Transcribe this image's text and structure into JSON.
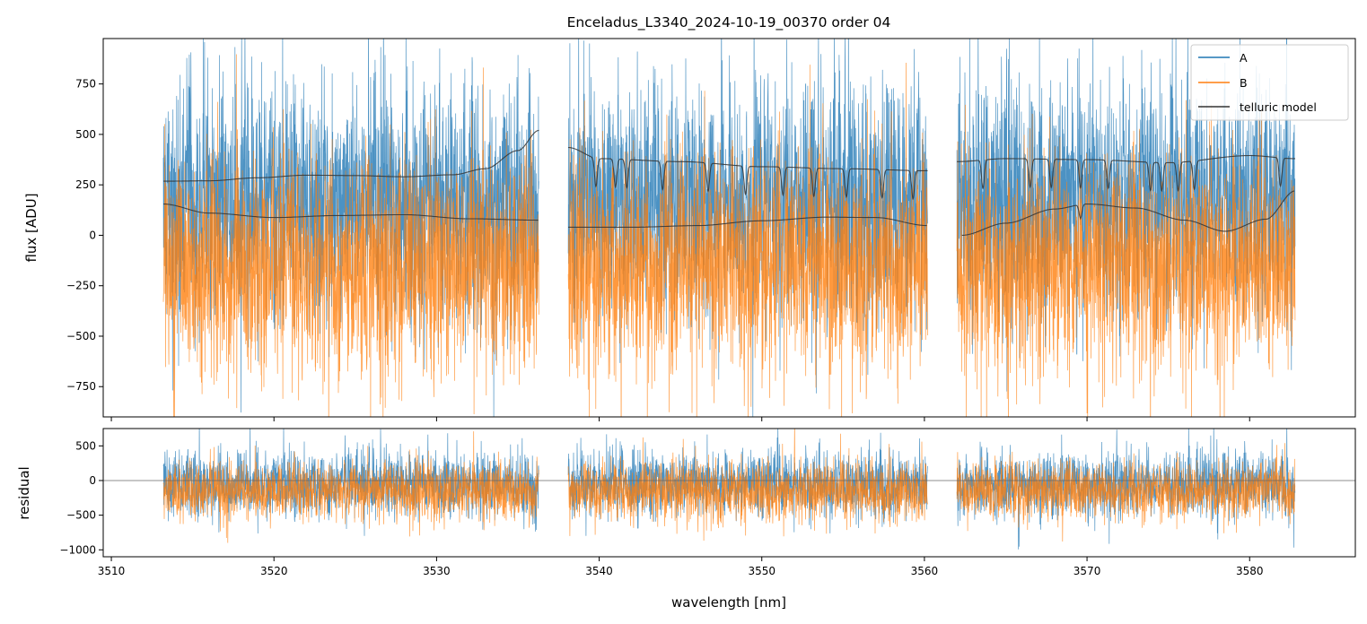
{
  "chart_data": {
    "type": "line",
    "title": "Enceladus_L3340_2024-10-19_00370  order 04",
    "xlabel": "wavelength [nm]",
    "xlim": [
      3509.5,
      3586.5
    ],
    "xticks": [
      3510,
      3520,
      3530,
      3540,
      3550,
      3560,
      3570,
      3580
    ],
    "panels": [
      {
        "id": "main",
        "ylabel": "flux [ADU]",
        "ylim": [
          -900,
          975
        ],
        "yticks": [
          -750,
          -500,
          -250,
          0,
          250,
          500,
          750
        ],
        "ytick_labels": [
          "−750",
          "−500",
          "−250",
          "0",
          "250",
          "500",
          "750"
        ],
        "series": [
          {
            "name": "A",
            "color": "#1f77b4",
            "linewidth": 1,
            "style": "noisy spectrum",
            "mean_level": 180,
            "noise_std": 280
          },
          {
            "name": "B",
            "color": "#ff7f0e",
            "linewidth": 1,
            "style": "noisy spectrum",
            "mean_level": -150,
            "noise_std": 260
          },
          {
            "name": "telluric model",
            "color": "#333333",
            "linewidth": 1,
            "segments_upper": [
              {
                "x": [
                  3513.2,
                  3516,
                  3519,
                  3522,
                  3525,
                  3528,
                  3531,
                  3533,
                  3535,
                  3536.3
                ],
                "y": [
                  268,
                  270,
                  285,
                  298,
                  296,
                  290,
                  300,
                  330,
                  420,
                  520
                ]
              },
              {
                "x": [
                  3538.1,
                  3540,
                  3545,
                  3550,
                  3555,
                  3560.2
                ],
                "y": [
                  435,
                  380,
                  365,
                  340,
                  330,
                  320
                ]
              },
              {
                "x": [
                  3562.0,
                  3565,
                  3570,
                  3575,
                  3580,
                  3582.8
                ],
                "y": [
                  365,
                  380,
                  375,
                  360,
                  395,
                  380
                ]
              }
            ],
            "segments_lower": [
              {
                "x": [
                  3513.2,
                  3516,
                  3520,
                  3524,
                  3528,
                  3532,
                  3536.3
                ],
                "y": [
                  155,
                  110,
                  88,
                  98,
                  102,
                  82,
                  75
                ]
              },
              {
                "x": [
                  3538.1,
                  3542,
                  3546,
                  3550,
                  3554,
                  3557,
                  3560.2
                ],
                "y": [
                  40,
                  40,
                  48,
                  72,
                  90,
                  88,
                  48
                ]
              },
              {
                "x": [
                  3562.3,
                  3565,
                  3568,
                  3570,
                  3573,
                  3576,
                  3578.5,
                  3581,
                  3582.8
                ],
                "y": [
                  0,
                  60,
                  130,
                  155,
                  135,
                  75,
                  20,
                  80,
                  220
                ]
              }
            ],
            "absorption_lines": [
              3539.8,
              3541.0,
              3541.7,
              3543.9,
              3546.7,
              3549.0,
              3551.3,
              3553.2,
              3555.2,
              3557.4,
              3559.3,
              3563.6,
              3566.5,
              3567.8,
              3569.6,
              3571.3,
              3573.9,
              3574.6,
              3575.6,
              3576.6,
              3581.9
            ]
          }
        ],
        "legend": {
          "entries": [
            "A",
            "B",
            "telluric model"
          ],
          "location": "upper right"
        }
      },
      {
        "id": "residual",
        "ylabel": "residual",
        "ylim": [
          -1100,
          750
        ],
        "yticks": [
          -1000,
          -500,
          0,
          500
        ],
        "ytick_labels": [
          "−1000",
          "−500",
          "0",
          "500"
        ],
        "zero_line": true,
        "series": [
          {
            "name": "A",
            "color": "#1f77b4",
            "mean_level": -50,
            "noise_std": 230
          },
          {
            "name": "B",
            "color": "#ff7f0e",
            "mean_level": -150,
            "noise_std": 210
          }
        ]
      }
    ],
    "segments": [
      [
        3513.2,
        3536.3
      ],
      [
        3538.1,
        3560.2
      ],
      [
        3562.0,
        3582.8
      ]
    ]
  }
}
